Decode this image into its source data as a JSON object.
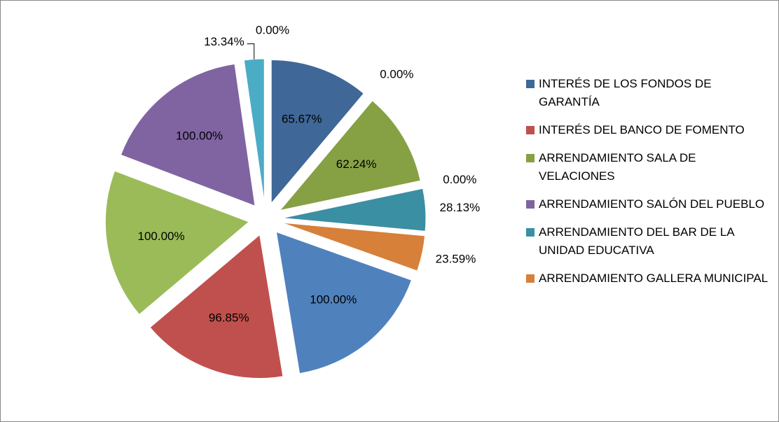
{
  "chart_data": {
    "type": "pie",
    "categories": [
      "INTERÉS DE LOS FONDOS DE GARANTÍA",
      "INTERÉS DEL BANCO DE FOMENTO",
      "ARRENDAMIENTO SALA DE VELACIONES",
      "ARRENDAMIENTO SALÓN DEL PUEBLO",
      "ARRENDAMIENTO DEL BAR DE LA UNIDAD EDUCATIVA",
      "ARRENDAMIENTO GALLERA MUNICIPAL",
      null,
      null,
      null,
      null,
      null,
      null
    ],
    "values": [
      65.67,
      0,
      62.24,
      0,
      28.13,
      23.59,
      100,
      96.85,
      100,
      100,
      13.34,
      0
    ],
    "value_labels": [
      "65.67%",
      "0.00%",
      "62.24%",
      "0.00%",
      "28.13%",
      "23.59%",
      "100.00%",
      "96.85%",
      "100.00%",
      "100.00%",
      "13.34%",
      "0.00%"
    ],
    "colors": [
      "#3F6797",
      "#C0504D",
      "#86A044",
      "#8064A2",
      "#3A8FA3",
      "#D7803A",
      "#4F81BD",
      "#C0504D",
      "#9BBB59",
      "#8064A2",
      "#4BACC6",
      "#F79646"
    ],
    "exploded": true,
    "legend": "right"
  }
}
